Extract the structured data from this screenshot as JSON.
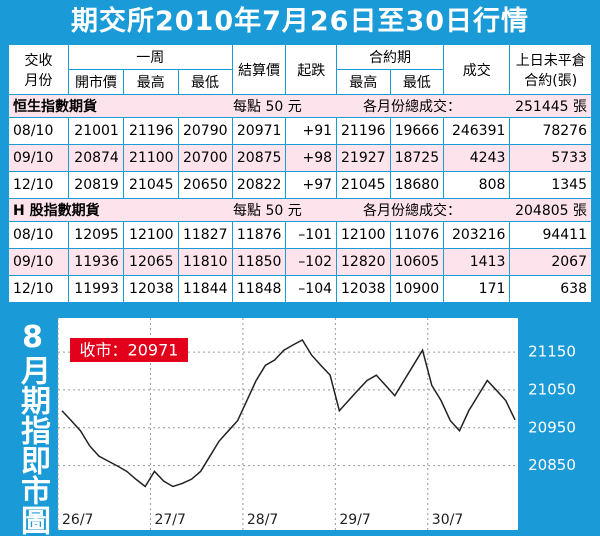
{
  "header": {
    "title": "期交所2010年7月26日至30日行情"
  },
  "table": {
    "head": {
      "month": [
        "交收",
        "月份"
      ],
      "week": "一周",
      "week_cols": [
        "開市價",
        "最高",
        "最低"
      ],
      "settle": "結算價",
      "change": "起跌",
      "contract": "合約期",
      "contract_cols": [
        "最高",
        "最低"
      ],
      "volume": "成交",
      "open_interest": [
        "上日未平倉",
        "合約(張)"
      ]
    },
    "sections": [
      {
        "name": "恒生指數期貨",
        "unit": "每點 50 元",
        "total_label": "各月份總成交：",
        "total": "251445 張",
        "rows": [
          [
            "08/10",
            "21001",
            "21196",
            "20790",
            "20971",
            "+91",
            "21196",
            "19666",
            "246391",
            "78276"
          ],
          [
            "09/10",
            "20874",
            "21100",
            "20700",
            "20875",
            "+98",
            "21927",
            "18725",
            "4243",
            "5733"
          ],
          [
            "12/10",
            "20819",
            "21045",
            "20650",
            "20822",
            "+97",
            "21045",
            "18680",
            "808",
            "1345"
          ]
        ]
      },
      {
        "name": "H 股指數期貨",
        "unit": "每點 50 元",
        "total_label": "各月份總成交：",
        "total": "204805 張",
        "rows": [
          [
            "08/10",
            "12095",
            "12100",
            "11827",
            "11876",
            "–101",
            "12100",
            "11076",
            "203216",
            "94411"
          ],
          [
            "09/10",
            "11936",
            "12065",
            "11810",
            "11850",
            "–102",
            "12820",
            "10605",
            "1413",
            "2067"
          ],
          [
            "12/10",
            "11993",
            "12038",
            "11844",
            "11848",
            "–104",
            "12038",
            "10900",
            "171",
            "638"
          ]
        ]
      }
    ]
  },
  "chart_data": {
    "type": "line",
    "title": "8月期指即市圖",
    "annotation": "收市：20971",
    "color": "#222222",
    "grid": true,
    "categories": [
      "26/7",
      null,
      null,
      null,
      null,
      null,
      null,
      null,
      null,
      null,
      "27/7",
      null,
      null,
      null,
      null,
      null,
      null,
      null,
      null,
      null,
      "28/7",
      null,
      null,
      null,
      null,
      null,
      null,
      null,
      null,
      null,
      "29/7",
      null,
      null,
      null,
      null,
      null,
      null,
      null,
      null,
      null,
      "30/7",
      null,
      null,
      null,
      null,
      null,
      null,
      null,
      null,
      null
    ],
    "values": [
      20995,
      20969,
      20942,
      20902,
      20875,
      20862,
      20849,
      20835,
      20814,
      20795,
      20835,
      20809,
      20795,
      20803,
      20814,
      20835,
      20875,
      20915,
      20942,
      20969,
      21022,
      21075,
      21115,
      21129,
      21155,
      21169,
      21182,
      21142,
      21115,
      21089,
      20995,
      21022,
      21049,
      21075,
      21089,
      21062,
      21035,
      21075,
      21115,
      21155,
      21062,
      21022,
      20969,
      20942,
      20995,
      21035,
      21075,
      21049,
      21022,
      20971
    ],
    "ylim": [
      20680,
      21240
    ],
    "yticks": [
      20850,
      20950,
      21050,
      21150
    ]
  }
}
